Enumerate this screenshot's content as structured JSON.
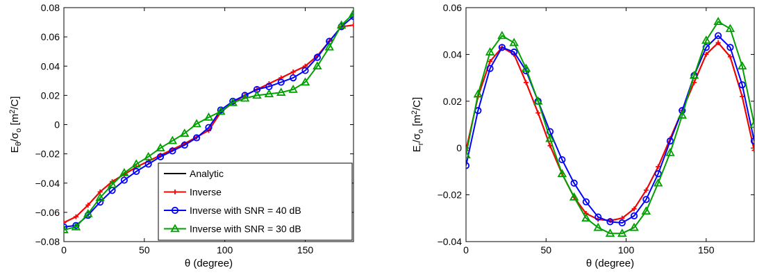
{
  "chart_data": [
    {
      "type": "line",
      "xlabel": "θ (degree)",
      "ylabel_main": "E",
      "ylabel_sub1": "θ",
      "ylabel_mid": "/σ",
      "ylabel_sub2": "o",
      "ylabel_unit": " [m",
      "ylabel_sup": "2",
      "ylabel_end": "/C]",
      "xlim": [
        0,
        180
      ],
      "ylim": [
        -0.08,
        0.08
      ],
      "xticks": [
        0,
        50,
        100,
        150
      ],
      "xtick_labels": [
        "0",
        "50",
        "100",
        "150"
      ],
      "yticks": [
        -0.08,
        -0.06,
        -0.04,
        -0.02,
        0,
        0.02,
        0.04,
        0.06,
        0.08
      ],
      "ytick_labels": [
        "−0.08",
        "−0.06",
        "−0.04",
        "−0.02",
        "0",
        "0.02",
        "0.04",
        "0.06",
        "0.08"
      ],
      "grid": false,
      "legend_position": "bottom-right",
      "x": [
        0,
        7.5,
        15,
        22.5,
        30,
        37.5,
        45,
        52.5,
        60,
        67.5,
        75,
        82.5,
        90,
        97.5,
        105,
        112.5,
        120,
        127.5,
        135,
        142.5,
        150,
        157.5,
        165,
        172.5,
        180
      ],
      "series": [
        {
          "name": "Analytic",
          "color": "#000000",
          "marker": "none",
          "values": [
            -0.067,
            -0.063,
            -0.055,
            -0.046,
            -0.039,
            -0.034,
            -0.029,
            -0.025,
            -0.021,
            -0.017,
            -0.013,
            -0.0085,
            -0.004,
            0.0085,
            0.015,
            0.02,
            0.024,
            0.028,
            0.032,
            0.036,
            0.04,
            0.047,
            0.057,
            0.067,
            0.068
          ]
        },
        {
          "name": "Inverse",
          "color": "#ff0000",
          "marker": "plus",
          "values": [
            -0.067,
            -0.063,
            -0.055,
            -0.046,
            -0.039,
            -0.034,
            -0.029,
            -0.025,
            -0.021,
            -0.017,
            -0.013,
            -0.0085,
            -0.004,
            0.0085,
            0.015,
            0.02,
            0.024,
            0.028,
            0.032,
            0.036,
            0.04,
            0.047,
            0.057,
            0.067,
            0.068
          ]
        },
        {
          "name": "Inverse with SNR = 40 dB",
          "color": "#0000ff",
          "marker": "circle",
          "values": [
            -0.07,
            -0.069,
            -0.062,
            -0.053,
            -0.045,
            -0.038,
            -0.032,
            -0.027,
            -0.022,
            -0.018,
            -0.014,
            -0.009,
            -0.002,
            0.01,
            0.016,
            0.02,
            0.024,
            0.026,
            0.029,
            0.032,
            0.037,
            0.046,
            0.057,
            0.067,
            0.074
          ]
        },
        {
          "name": "Inverse with SNR = 30 dB",
          "color": "#00a000",
          "marker": "triangle",
          "values": [
            -0.072,
            -0.07,
            -0.061,
            -0.05,
            -0.041,
            -0.033,
            -0.027,
            -0.022,
            -0.016,
            -0.011,
            -0.006,
            0.0005,
            0.005,
            0.009,
            0.015,
            0.018,
            0.02,
            0.021,
            0.022,
            0.024,
            0.029,
            0.04,
            0.053,
            0.068,
            0.076
          ]
        }
      ]
    },
    {
      "type": "line",
      "xlabel": "θ (degree)",
      "ylabel_main": "E",
      "ylabel_sub1": "r",
      "ylabel_mid": "/σ",
      "ylabel_sub2": "o",
      "ylabel_unit": " [m",
      "ylabel_sup": "2",
      "ylabel_end": "/C]",
      "xlim": [
        0,
        180
      ],
      "ylim": [
        -0.04,
        0.06
      ],
      "xticks": [
        0,
        50,
        100,
        150
      ],
      "xtick_labels": [
        "0",
        "50",
        "100",
        "150"
      ],
      "yticks": [
        -0.04,
        -0.02,
        0,
        0.02,
        0.04,
        0.06
      ],
      "ytick_labels": [
        "−0.04",
        "−0.02",
        "0",
        "0.02",
        "0.04",
        "0.06"
      ],
      "grid": false,
      "x": [
        0,
        7.5,
        15,
        22.5,
        30,
        37.5,
        45,
        52.5,
        60,
        67.5,
        75,
        82.5,
        90,
        97.5,
        105,
        112.5,
        120,
        127.5,
        135,
        142.5,
        150,
        157.5,
        165,
        172.5,
        180
      ],
      "series": [
        {
          "color": "#000000",
          "marker": "none",
          "values": [
            -0.001,
            0.022,
            0.037,
            0.043,
            0.04,
            0.028,
            0.015,
            0.001,
            -0.011,
            -0.021,
            -0.028,
            -0.0305,
            -0.031,
            -0.03,
            -0.026,
            -0.018,
            -0.008,
            0.004,
            0.016,
            0.028,
            0.04,
            0.045,
            0.039,
            0.022,
            -0.001
          ]
        },
        {
          "color": "#ff0000",
          "marker": "plus",
          "values": [
            -0.001,
            0.022,
            0.037,
            0.043,
            0.04,
            0.028,
            0.015,
            0.001,
            -0.011,
            -0.021,
            -0.028,
            -0.0305,
            -0.031,
            -0.03,
            -0.026,
            -0.018,
            -0.008,
            0.004,
            0.016,
            0.028,
            0.04,
            0.045,
            0.039,
            0.022,
            -0.001
          ]
        },
        {
          "color": "#0000ff",
          "marker": "circle",
          "values": [
            -0.0075,
            0.016,
            0.034,
            0.043,
            0.041,
            0.033,
            0.02,
            0.007,
            -0.005,
            -0.015,
            -0.023,
            -0.0295,
            -0.0315,
            -0.032,
            -0.029,
            -0.022,
            -0.011,
            0.003,
            0.016,
            0.031,
            0.043,
            0.048,
            0.043,
            0.027,
            0.003
          ]
        },
        {
          "color": "#00a000",
          "marker": "triangle",
          "values": [
            -0.003,
            0.023,
            0.041,
            0.048,
            0.045,
            0.034,
            0.02,
            0.004,
            -0.011,
            -0.021,
            -0.03,
            -0.034,
            -0.0365,
            -0.0365,
            -0.034,
            -0.027,
            -0.015,
            -0.002,
            0.014,
            0.031,
            0.046,
            0.054,
            0.051,
            0.035,
            0.01
          ]
        }
      ]
    }
  ]
}
